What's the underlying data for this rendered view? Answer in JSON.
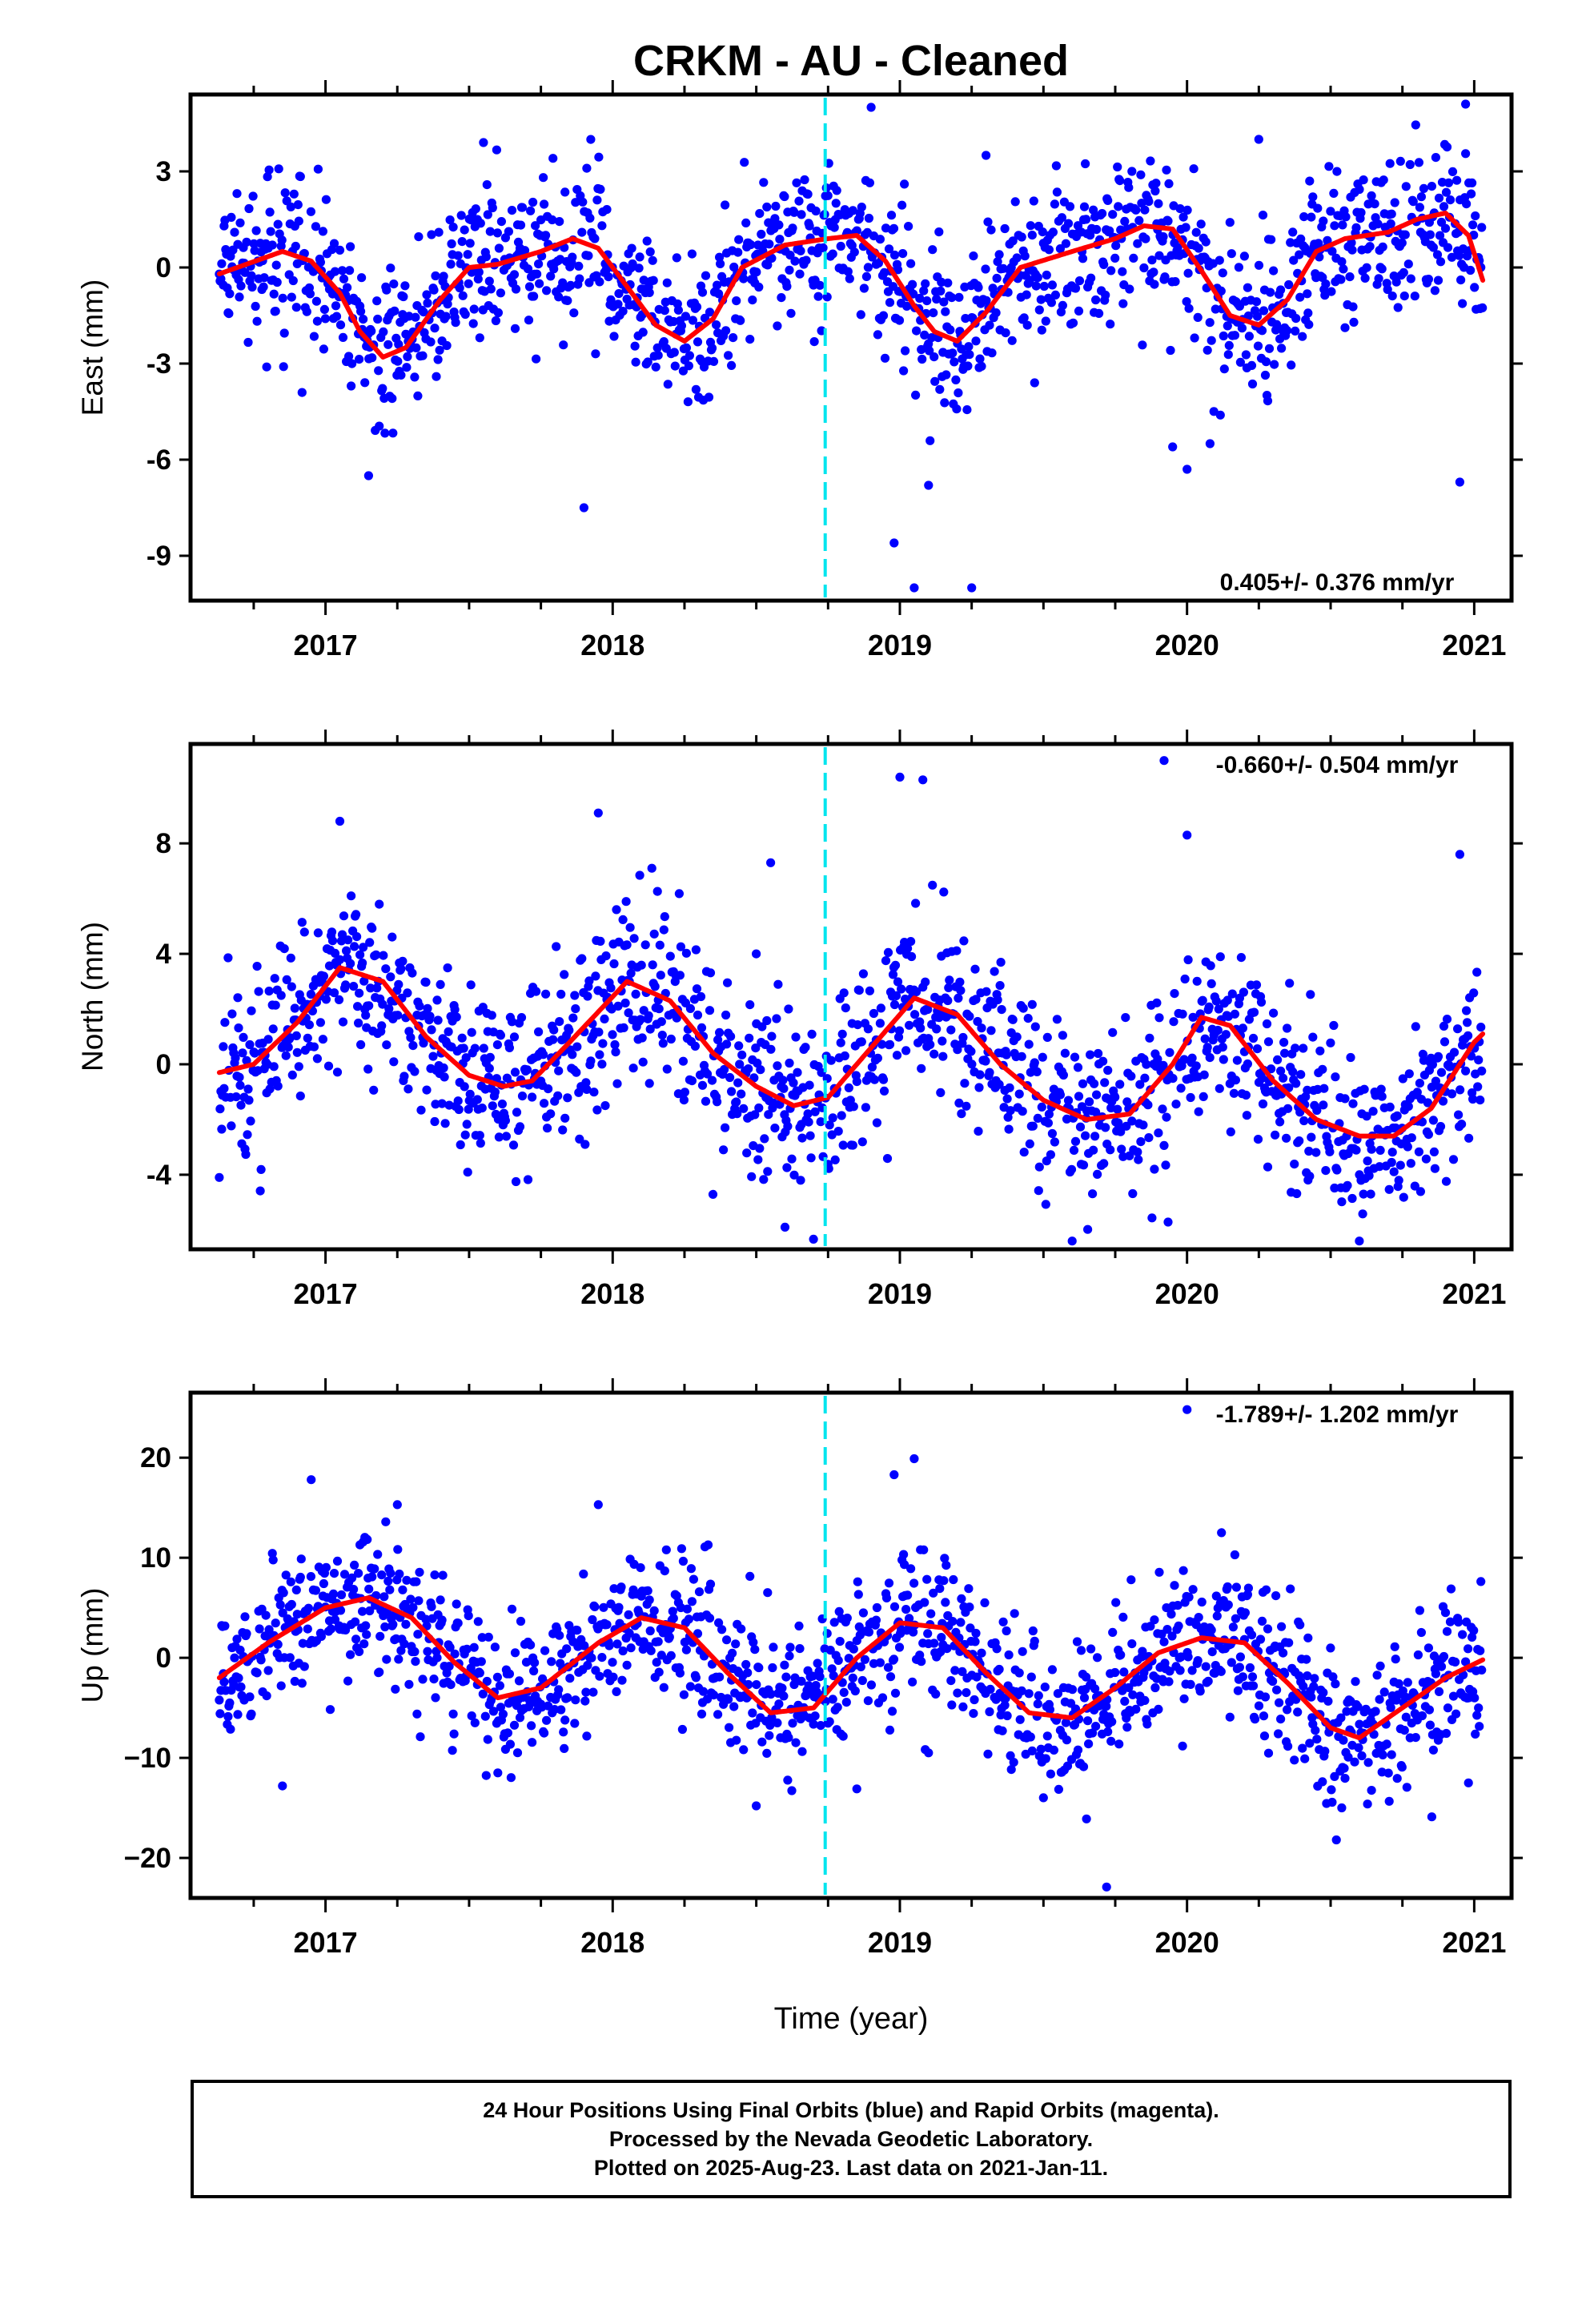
{
  "title": "CRKM  - AU - Cleaned",
  "xlabel": "Time (year)",
  "footer": {
    "line1": "24 Hour Positions Using Final Orbits (blue) and Rapid Orbits (magenta).",
    "line2": "Processed by the Nevada Geodetic Laboratory.",
    "line3": "Plotted on 2025-Aug-23. Last data on 2021-Jan-11."
  },
  "colors": {
    "points": "#0000ff",
    "fit": "#ff0000",
    "event_line": "#00e5ee",
    "frame": "#000000"
  },
  "chart_data": [
    {
      "type": "scatter",
      "ylabel": "East (mm)",
      "rate_label": "0.405+/- 0.376 mm/yr",
      "xlim": [
        2016.53,
        2021.13
      ],
      "ylim": [
        -10.4,
        5.4
      ],
      "yticks": [
        3,
        0,
        -3,
        -6,
        -9
      ],
      "ytick_labels": [
        "3",
        "0",
        "-3",
        "-6",
        "-9"
      ],
      "xticks": [
        2017,
        2018,
        2019,
        2020,
        2021
      ],
      "xtick_labels": [
        "2017",
        "2018",
        "2019",
        "2020",
        "2021"
      ],
      "event_line_x": 2018.74,
      "fit_x": [
        2016.63,
        2016.85,
        2016.95,
        2017.05,
        2017.12,
        2017.2,
        2017.28,
        2017.4,
        2017.5,
        2017.6,
        2017.75,
        2017.86,
        2017.95,
        2018.05,
        2018.15,
        2018.25,
        2018.35,
        2018.45,
        2018.6,
        2018.75,
        2018.85,
        2018.95,
        2019.05,
        2019.12,
        2019.2,
        2019.3,
        2019.42,
        2019.6,
        2019.75,
        2019.85,
        2019.95,
        2020.05,
        2020.15,
        2020.25,
        2020.35,
        2020.45,
        2020.55,
        2020.7,
        2020.8,
        2020.9,
        2020.98,
        2021.03
      ],
      "fit_y": [
        -0.2,
        0.5,
        0.2,
        -0.8,
        -2.0,
        -2.8,
        -2.5,
        -1.0,
        0.0,
        0.1,
        0.5,
        0.9,
        0.6,
        -0.6,
        -1.8,
        -2.3,
        -1.6,
        0.0,
        0.7,
        0.9,
        1.0,
        0.2,
        -1.2,
        -2.0,
        -2.3,
        -1.4,
        0.0,
        0.5,
        0.9,
        1.3,
        1.2,
        -0.1,
        -1.5,
        -1.8,
        -1.0,
        0.5,
        0.9,
        1.1,
        1.5,
        1.7,
        1.0,
        -0.4
      ],
      "scatter_noise": 1.2,
      "outliers": [
        [
          2017.15,
          -6.5
        ],
        [
          2017.9,
          -7.5
        ],
        [
          2018.98,
          -8.6
        ],
        [
          2019.05,
          -10.0
        ],
        [
          2019.1,
          -6.8
        ],
        [
          2019.25,
          -10.0
        ],
        [
          2019.95,
          -5.6
        ],
        [
          2020.0,
          -6.3
        ],
        [
          2020.08,
          -5.5
        ],
        [
          2020.95,
          -6.7
        ],
        [
          2018.9,
          5.0
        ],
        [
          2020.97,
          5.1
        ],
        [
          2017.55,
          3.9
        ],
        [
          2020.25,
          4.0
        ],
        [
          2019.3,
          3.5
        ]
      ]
    },
    {
      "type": "scatter",
      "ylabel": "North (mm)",
      "rate_label": "-0.660+/- 0.504 mm/yr",
      "xlim": [
        2016.53,
        2021.13
      ],
      "ylim": [
        -6.7,
        11.6
      ],
      "yticks": [
        8,
        4,
        0,
        -4
      ],
      "ytick_labels": [
        "8",
        "4",
        "0",
        "-4"
      ],
      "xticks": [
        2017,
        2018,
        2019,
        2020,
        2021
      ],
      "xtick_labels": [
        "2017",
        "2018",
        "2019",
        "2020",
        "2021"
      ],
      "event_line_x": 2018.74,
      "fit_x": [
        2016.63,
        2016.75,
        2016.9,
        2017.05,
        2017.2,
        2017.35,
        2017.5,
        2017.62,
        2017.72,
        2017.85,
        2018.05,
        2018.2,
        2018.35,
        2018.5,
        2018.63,
        2018.75,
        2018.9,
        2019.05,
        2019.2,
        2019.35,
        2019.5,
        2019.65,
        2019.8,
        2019.95,
        2020.05,
        2020.15,
        2020.3,
        2020.45,
        2020.6,
        2020.72,
        2020.85,
        2021.0,
        2021.03
      ],
      "fit_y": [
        -0.3,
        0.0,
        1.5,
        3.5,
        3.0,
        1.0,
        -0.4,
        -0.8,
        -0.6,
        0.8,
        3.0,
        2.3,
        0.4,
        -0.8,
        -1.5,
        -1.2,
        0.6,
        2.4,
        1.8,
        0.0,
        -1.3,
        -2.0,
        -1.8,
        0.0,
        1.7,
        1.4,
        -0.6,
        -2.0,
        -2.6,
        -2.6,
        -1.6,
        0.8,
        1.1
      ],
      "scatter_noise": 1.6,
      "outliers": [
        [
          2016.63,
          -4.1
        ],
        [
          2017.05,
          8.8
        ],
        [
          2017.95,
          9.1
        ],
        [
          2018.55,
          7.3
        ],
        [
          2018.6,
          -5.9
        ],
        [
          2019.0,
          10.4
        ],
        [
          2019.08,
          10.3
        ],
        [
          2019.92,
          11.0
        ],
        [
          2020.0,
          8.3
        ],
        [
          2020.95,
          7.6
        ],
        [
          2019.6,
          -6.4
        ],
        [
          2020.6,
          -6.4
        ],
        [
          2018.5,
          4.0
        ]
      ]
    },
    {
      "type": "scatter",
      "ylabel": "Up (mm)",
      "rate_label": "-1.789+/- 1.202 mm/yr",
      "xlim": [
        2016.53,
        2021.13
      ],
      "ylim": [
        -24,
        26.5
      ],
      "yticks": [
        20,
        10,
        0,
        -10,
        -20
      ],
      "ytick_labels": [
        "20",
        "10",
        "0",
        "−10",
        "−20"
      ],
      "xticks": [
        2017,
        2018,
        2019,
        2020,
        2021
      ],
      "xtick_labels": [
        "2017",
        "2018",
        "2019",
        "2020",
        "2021"
      ],
      "event_line_x": 2018.74,
      "fit_x": [
        2016.63,
        2016.8,
        2017.0,
        2017.15,
        2017.3,
        2017.45,
        2017.6,
        2017.75,
        2017.95,
        2018.1,
        2018.25,
        2018.4,
        2018.55,
        2018.7,
        2018.85,
        2019.0,
        2019.15,
        2019.3,
        2019.45,
        2019.6,
        2019.75,
        2019.9,
        2020.05,
        2020.2,
        2020.35,
        2020.5,
        2020.6,
        2020.75,
        2020.9,
        2021.03
      ],
      "fit_y": [
        -2.0,
        1.5,
        5.0,
        6.0,
        4.0,
        -0.5,
        -4.0,
        -3.0,
        1.5,
        4.0,
        3.0,
        -1.5,
        -5.5,
        -5.0,
        0.0,
        3.5,
        3.0,
        -1.5,
        -5.5,
        -6.0,
        -3.0,
        0.5,
        2.0,
        1.5,
        -2.5,
        -7.0,
        -8.0,
        -5.0,
        -2.0,
        -0.2
      ],
      "scatter_noise": 3.6,
      "outliers": [
        [
          2016.85,
          -12.8
        ],
        [
          2016.95,
          17.8
        ],
        [
          2017.25,
          15.3
        ],
        [
          2017.6,
          -11.5
        ],
        [
          2017.95,
          15.3
        ],
        [
          2018.5,
          -14.8
        ],
        [
          2018.98,
          18.3
        ],
        [
          2019.05,
          19.9
        ],
        [
          2019.1,
          -9.5
        ],
        [
          2019.65,
          -16.1
        ],
        [
          2019.72,
          -22.9
        ],
        [
          2020.0,
          24.8
        ],
        [
          2020.12,
          12.5
        ],
        [
          2020.52,
          -18.2
        ],
        [
          2020.98,
          -12.5
        ],
        [
          2018.85,
          -13.1
        ]
      ]
    }
  ]
}
